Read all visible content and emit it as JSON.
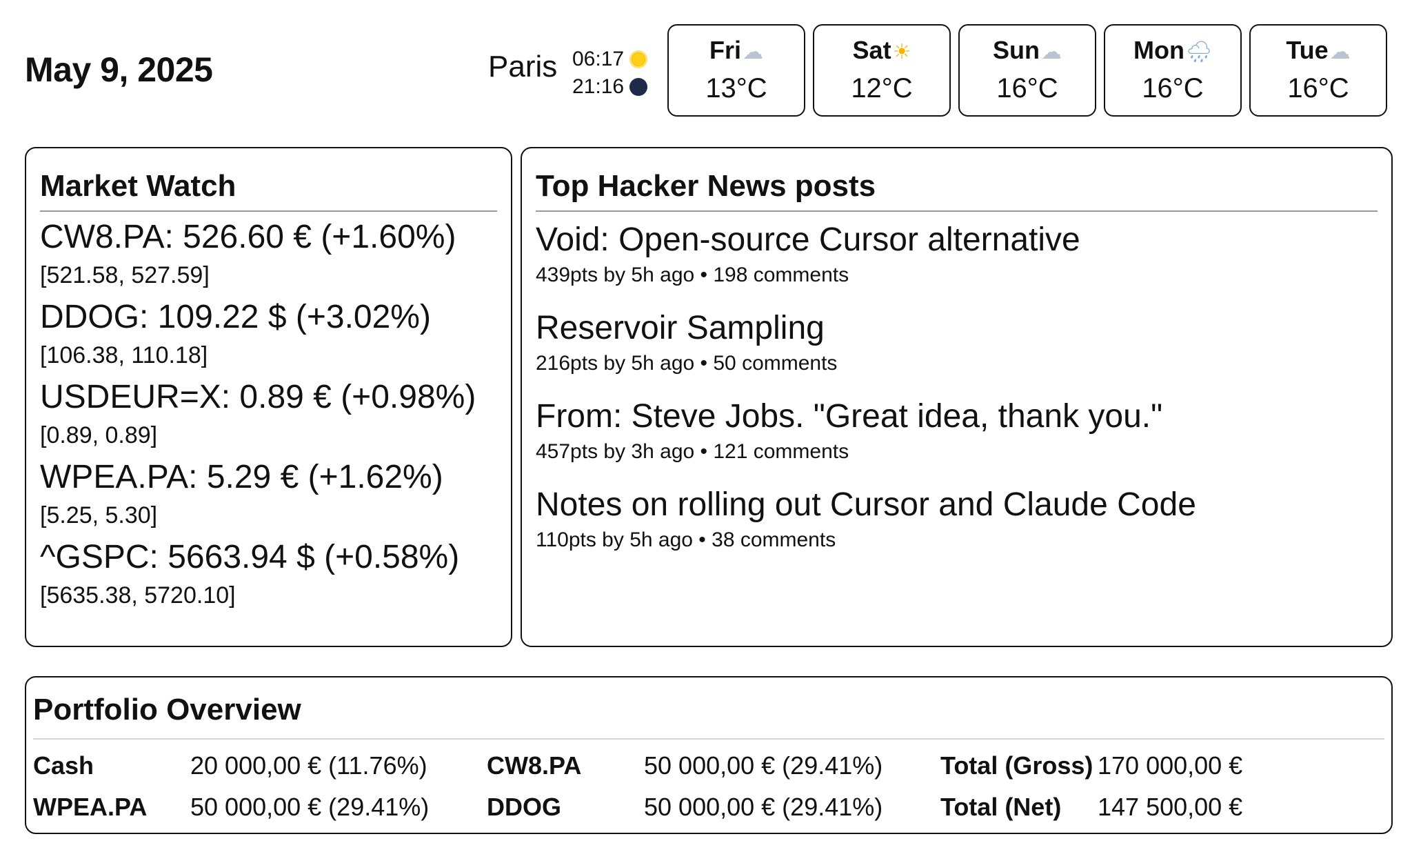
{
  "header": {
    "date": "May 9, 2025",
    "city": "Paris",
    "sunrise": "06:17",
    "sunset": "21:16",
    "sunrise_icon": "sun-icon",
    "sunset_icon": "moon-icon"
  },
  "forecast": [
    {
      "day": "Fri",
      "icon": "cloud-icon",
      "glyph": "☁",
      "temp": "13°C"
    },
    {
      "day": "Sat",
      "icon": "sun-icon",
      "glyph": "☀",
      "temp": "12°C"
    },
    {
      "day": "Sun",
      "icon": "cloud-icon",
      "glyph": "☁",
      "temp": "16°C"
    },
    {
      "day": "Mon",
      "icon": "rain-cloud-icon",
      "glyph": "🌧",
      "temp": "16°C"
    },
    {
      "day": "Tue",
      "icon": "cloud-icon",
      "glyph": "☁",
      "temp": "16°C"
    }
  ],
  "market": {
    "title": "Market Watch",
    "stocks": [
      {
        "line": "CW8.PA: 526.60 € (+1.60%)",
        "range": "[521.58, 527.59]"
      },
      {
        "line": "DDOG: 109.22 $ (+3.02%)",
        "range": "[106.38, 110.18]"
      },
      {
        "line": "USDEUR=X: 0.89 € (+0.98%)",
        "range": "[0.89, 0.89]"
      },
      {
        "line": "WPEA.PA: 5.29 € (+1.62%)",
        "range": "[5.25, 5.30]"
      },
      {
        "line": "^GSPC: 5663.94 $ (+0.58%)",
        "range": "[5635.38, 5720.10]"
      }
    ]
  },
  "hn": {
    "title": "Top Hacker News posts",
    "posts": [
      {
        "title": "Void: Open-source Cursor alternative",
        "meta": "439pts by 5h ago • 198 comments"
      },
      {
        "title": "Reservoir Sampling",
        "meta": "216pts by 5h ago • 50 comments"
      },
      {
        "title": "From: Steve Jobs. \"Great idea, thank you.\"",
        "meta": "457pts by 3h ago • 121 comments"
      },
      {
        "title": "Notes on rolling out Cursor and Claude Code",
        "meta": "110pts by 5h ago • 38 comments"
      }
    ]
  },
  "portfolio": {
    "title": "Portfolio Overview",
    "rows": [
      [
        {
          "label": "Cash",
          "value": "20 000,00 € (11.76%)"
        },
        {
          "label": "CW8.PA",
          "value": "50 000,00 € (29.41%)"
        },
        {
          "label": "Total (Gross)",
          "value": "170 000,00 €"
        }
      ],
      [
        {
          "label": "WPEA.PA",
          "value": "50 000,00 € (29.41%)"
        },
        {
          "label": "DDOG",
          "value": "50 000,00 € (29.41%)"
        },
        {
          "label": "Total (Net)",
          "value": "147 500,00 €"
        }
      ]
    ]
  }
}
